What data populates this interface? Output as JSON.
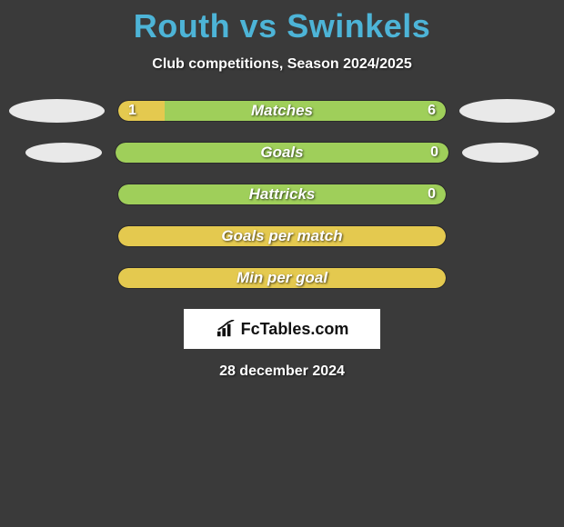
{
  "header": {
    "title": "Routh vs Swinkels",
    "title_color": "#4db4d7",
    "subtitle": "Club competitions, Season 2024/2025"
  },
  "background_color": "#3a3a3a",
  "ovals": {
    "left_top_color": "#e9e9e9",
    "right_top_color": "#e9e9e9",
    "left_2_color": "#e9e9e9",
    "right_2_color": "#e9e9e9"
  },
  "bars": [
    {
      "label": "Matches",
      "left_value": "1",
      "right_value": "6",
      "left_pct": 14.3,
      "right_pct": 85.7,
      "left_color": "#e4c94f",
      "right_color": "#9fcf5a",
      "show_left_oval": true,
      "show_right_oval": true,
      "show_left_val": true,
      "show_right_val": true
    },
    {
      "label": "Goals",
      "left_value": "",
      "right_value": "0",
      "left_pct": 0,
      "right_pct": 100,
      "left_color": "#e4c94f",
      "right_color": "#9fcf5a",
      "show_left_oval": true,
      "show_right_oval": true,
      "show_left_val": false,
      "show_right_val": true
    },
    {
      "label": "Hattricks",
      "left_value": "",
      "right_value": "0",
      "left_pct": 0,
      "right_pct": 100,
      "left_color": "#e4c94f",
      "right_color": "#9fcf5a",
      "show_left_oval": false,
      "show_right_oval": false,
      "show_left_val": false,
      "show_right_val": true
    },
    {
      "label": "Goals per match",
      "left_value": "",
      "right_value": "",
      "left_pct": 100,
      "right_pct": 0,
      "left_color": "#e4c94f",
      "right_color": "#9fcf5a",
      "show_left_oval": false,
      "show_right_oval": false,
      "show_left_val": false,
      "show_right_val": false
    },
    {
      "label": "Min per goal",
      "left_value": "",
      "right_value": "",
      "left_pct": 100,
      "right_pct": 0,
      "left_color": "#e4c94f",
      "right_color": "#9fcf5a",
      "show_left_oval": false,
      "show_right_oval": false,
      "show_left_val": false,
      "show_right_val": false
    }
  ],
  "brand": {
    "text": "FcTables.com",
    "icon_color": "#111111"
  },
  "date": "28 december 2024"
}
